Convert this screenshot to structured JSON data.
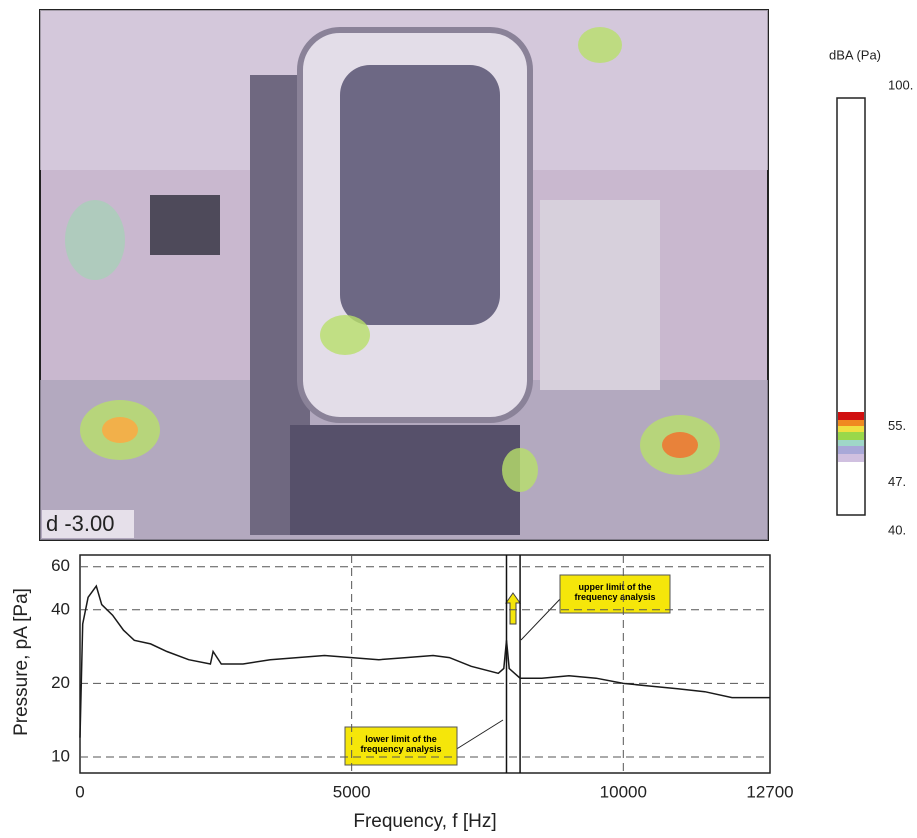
{
  "image": {
    "label": "d -3.00"
  },
  "colorbar": {
    "title": "dBA (Pa)",
    "lim": [
      40,
      100
    ],
    "ticks": [
      {
        "value": 100,
        "label": "100."
      },
      {
        "value": 55,
        "label": "55."
      },
      {
        "value": 47,
        "label": "47."
      },
      {
        "value": 40,
        "label": "40."
      }
    ]
  },
  "chart_data": {
    "type": "line",
    "xlabel": "Frequency, f [Hz]",
    "ylabel": "Pressure, pA [Pa]",
    "log_y": true,
    "grid": true,
    "color": "#1a1a1a",
    "xlim": [
      0,
      12700
    ],
    "ylim": [
      8.6,
      67
    ],
    "xticks": [
      0,
      5000,
      10000,
      12700
    ],
    "yticks": [
      10,
      20,
      40,
      60
    ],
    "x": [
      0,
      50,
      150,
      300,
      400,
      600,
      800,
      1000,
      1300,
      1600,
      2000,
      2400,
      2450,
      2600,
      3000,
      3500,
      4000,
      4500,
      5000,
      5500,
      6000,
      6500,
      6800,
      7200,
      7700,
      7800,
      7850,
      7900,
      8100,
      8500,
      9000,
      9500,
      10000,
      10500,
      11000,
      11500,
      12000,
      12700
    ],
    "values": [
      12,
      35,
      45,
      50,
      42,
      38,
      33,
      30,
      29,
      27,
      25,
      24,
      27,
      24,
      24,
      25,
      25.5,
      26,
      25.5,
      25,
      25.5,
      26,
      25.5,
      23.5,
      22,
      23,
      30,
      23,
      21,
      21,
      21.5,
      21,
      20,
      19.5,
      19,
      18.5,
      17.5,
      17.5
    ],
    "limits": [
      7850,
      8100
    ],
    "annotations": [
      "upper limit of the frequency analysis",
      "lower limit of the frequency analysis"
    ]
  }
}
